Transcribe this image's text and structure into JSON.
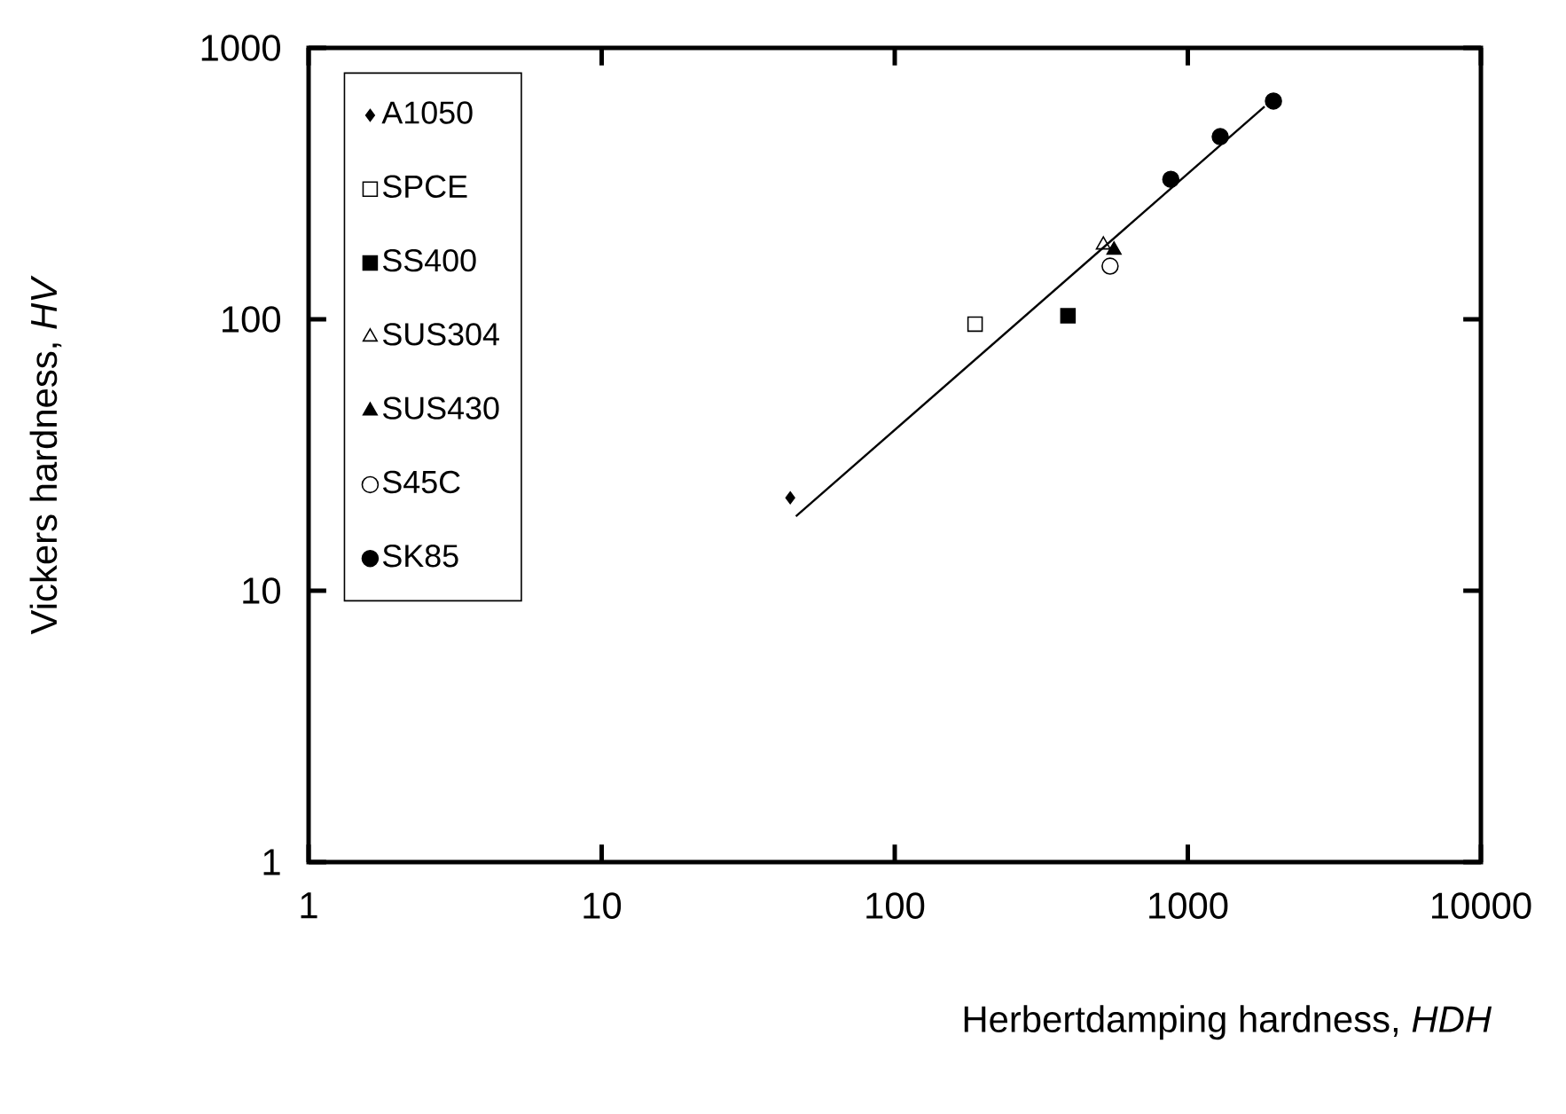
{
  "chart_data": {
    "type": "scatter",
    "xlabel": "Herbertdamping hardness,  *HDH*",
    "ylabel": "Vickers hardness,  *HV*",
    "log": "xy",
    "grid": false,
    "legend": "top left",
    "xlim": [
      1,
      10000
    ],
    "ylim": [
      1,
      1000
    ],
    "xticks": [
      1,
      10,
      100,
      1000,
      10000
    ],
    "yticks": [
      1,
      10,
      100,
      1000
    ],
    "series": [
      {
        "name": "A1050",
        "color": "#000000",
        "marker": "diamond",
        "x": [
          44
        ],
        "values": [
          22
        ]
      },
      {
        "name": "SPCE",
        "color": "#000000",
        "marker": "square",
        "x": [
          188
        ],
        "values": [
          96
        ]
      },
      {
        "name": "SS400",
        "color": "#000000",
        "marker": "square",
        "x": [
          390
        ],
        "values": [
          103
        ]
      },
      {
        "name": "SUS304",
        "color": "#000000",
        "marker": "triangle",
        "x": [
          515
        ],
        "values": [
          188
        ]
      },
      {
        "name": "SUS430",
        "color": "#000000",
        "marker": "triangle",
        "x": [
          560
        ],
        "values": [
          180
        ]
      },
      {
        "name": "S45C",
        "color": "#000000",
        "marker": "circle",
        "x": [
          543
        ],
        "values": [
          157
        ]
      },
      {
        "name": "SK85",
        "color": "#000000",
        "marker": "circle",
        "x": [
          875,
          1290,
          1960
        ],
        "values": [
          328,
          471,
          637
        ]
      },
      {
        "type": "line",
        "color": "#000000",
        "marker": "none",
        "line_style": "solid",
        "x": [
          46,
          1828
        ],
        "values": [
          18.8,
          608
        ]
      }
    ]
  }
}
